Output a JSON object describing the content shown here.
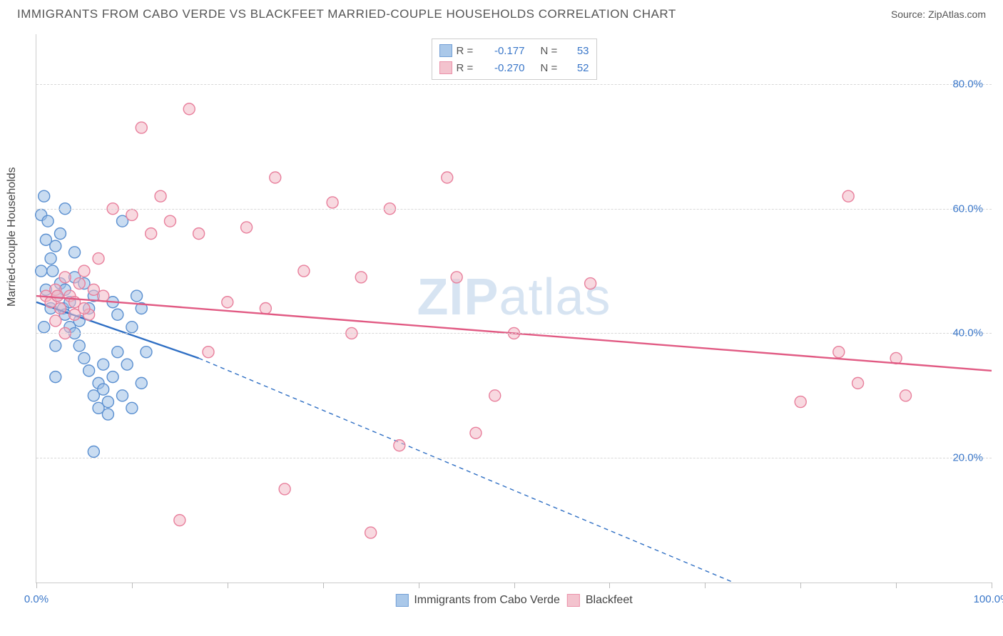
{
  "header": {
    "title": "IMMIGRANTS FROM CABO VERDE VS BLACKFEET MARRIED-COUPLE HOUSEHOLDS CORRELATION CHART",
    "source_prefix": "Source: ",
    "source": "ZipAtlas.com"
  },
  "chart": {
    "type": "scatter",
    "ylabel": "Married-couple Households",
    "watermark_a": "ZIP",
    "watermark_b": "atlas",
    "xlim": [
      0,
      100
    ],
    "ylim": [
      0,
      88
    ],
    "xticks": [
      0,
      10,
      20,
      30,
      40,
      50,
      60,
      70,
      80,
      90,
      100
    ],
    "xtick_labels": {
      "0": "0.0%",
      "100": "100.0%"
    },
    "yticks": [
      20,
      40,
      60,
      80
    ],
    "ytick_labels": [
      "20.0%",
      "40.0%",
      "60.0%",
      "80.0%"
    ],
    "grid_color": "#d8d8d8",
    "axis_color": "#cccccc",
    "tick_label_color": "#3a77c9",
    "background_color": "#ffffff",
    "marker_radius": 8,
    "marker_stroke_width": 1.4,
    "series": [
      {
        "name": "Immigrants from Cabo Verde",
        "key": "cabo",
        "fill": "#9cbfe6",
        "stroke": "#5a8fd0",
        "fill_opacity": 0.55,
        "R": "-0.177",
        "N": "53",
        "trend": {
          "x1": 0,
          "y1": 45,
          "x2_solid": 17,
          "y2_solid": 36,
          "x2": 73,
          "y2": 0,
          "color": "#2f6fc4",
          "width": 2.4
        },
        "points": [
          [
            0.5,
            59
          ],
          [
            0.8,
            62
          ],
          [
            1,
            55
          ],
          [
            1.2,
            58
          ],
          [
            1.5,
            52
          ],
          [
            1.7,
            50
          ],
          [
            2,
            54
          ],
          [
            2.2,
            46
          ],
          [
            2.5,
            48
          ],
          [
            2.8,
            44
          ],
          [
            3,
            43
          ],
          [
            3,
            47
          ],
          [
            3.5,
            41
          ],
          [
            3.5,
            45
          ],
          [
            4,
            40
          ],
          [
            4,
            49
          ],
          [
            4.5,
            38
          ],
          [
            4.5,
            42
          ],
          [
            5,
            48
          ],
          [
            5,
            36
          ],
          [
            5.5,
            34
          ],
          [
            5.5,
            44
          ],
          [
            6,
            46
          ],
          [
            6,
            30
          ],
          [
            6.5,
            32
          ],
          [
            6.5,
            28
          ],
          [
            7,
            35
          ],
          [
            7,
            31
          ],
          [
            7.5,
            27
          ],
          [
            7.5,
            29
          ],
          [
            8,
            45
          ],
          [
            8,
            33
          ],
          [
            8.5,
            37
          ],
          [
            8.5,
            43
          ],
          [
            9,
            58
          ],
          [
            9,
            30
          ],
          [
            9.5,
            35
          ],
          [
            10,
            41
          ],
          [
            10,
            28
          ],
          [
            10.5,
            46
          ],
          [
            11,
            44
          ],
          [
            11,
            32
          ],
          [
            11.5,
            37
          ],
          [
            6,
            21
          ],
          [
            4,
            53
          ],
          [
            2,
            38
          ],
          [
            1,
            47
          ],
          [
            0.8,
            41
          ],
          [
            3,
            60
          ],
          [
            2.5,
            56
          ],
          [
            1.5,
            44
          ],
          [
            0.5,
            50
          ],
          [
            2,
            33
          ]
        ]
      },
      {
        "name": "Blackfeet",
        "key": "blackfeet",
        "fill": "#f2b9c6",
        "stroke": "#e87f9c",
        "fill_opacity": 0.55,
        "R": "-0.270",
        "N": "52",
        "trend": {
          "x1": 0,
          "y1": 46,
          "x2_solid": 100,
          "y2_solid": 34,
          "x2": 100,
          "y2": 34,
          "color": "#e15a83",
          "width": 2.4
        },
        "points": [
          [
            1,
            46
          ],
          [
            2,
            47
          ],
          [
            2.5,
            44
          ],
          [
            3,
            49
          ],
          [
            3.5,
            46
          ],
          [
            4,
            45
          ],
          [
            4.5,
            48
          ],
          [
            5,
            50
          ],
          [
            5.5,
            43
          ],
          [
            6,
            47
          ],
          [
            6.5,
            52
          ],
          [
            8,
            60
          ],
          [
            10,
            59
          ],
          [
            11,
            73
          ],
          [
            12,
            56
          ],
          [
            13,
            62
          ],
          [
            14,
            58
          ],
          [
            15,
            10
          ],
          [
            16,
            76
          ],
          [
            17,
            56
          ],
          [
            18,
            37
          ],
          [
            20,
            45
          ],
          [
            22,
            57
          ],
          [
            24,
            44
          ],
          [
            25,
            65
          ],
          [
            26,
            15
          ],
          [
            28,
            50
          ],
          [
            31,
            61
          ],
          [
            33,
            40
          ],
          [
            34,
            49
          ],
          [
            35,
            8
          ],
          [
            37,
            60
          ],
          [
            38,
            22
          ],
          [
            43,
            65
          ],
          [
            44,
            49
          ],
          [
            46,
            24
          ],
          [
            48,
            30
          ],
          [
            50,
            40
          ],
          [
            58,
            48
          ],
          [
            80,
            29
          ],
          [
            84,
            37
          ],
          [
            85,
            62
          ],
          [
            86,
            32
          ],
          [
            90,
            36
          ],
          [
            91,
            30
          ],
          [
            2,
            42
          ],
          [
            3,
            40
          ],
          [
            4,
            43
          ],
          [
            1.5,
            45
          ],
          [
            2.2,
            46
          ],
          [
            5,
            44
          ],
          [
            7,
            46
          ]
        ]
      }
    ],
    "legend_top": {
      "r_label": "R =",
      "n_label": "N ="
    },
    "legend_bottom_order": [
      "cabo",
      "blackfeet"
    ]
  }
}
